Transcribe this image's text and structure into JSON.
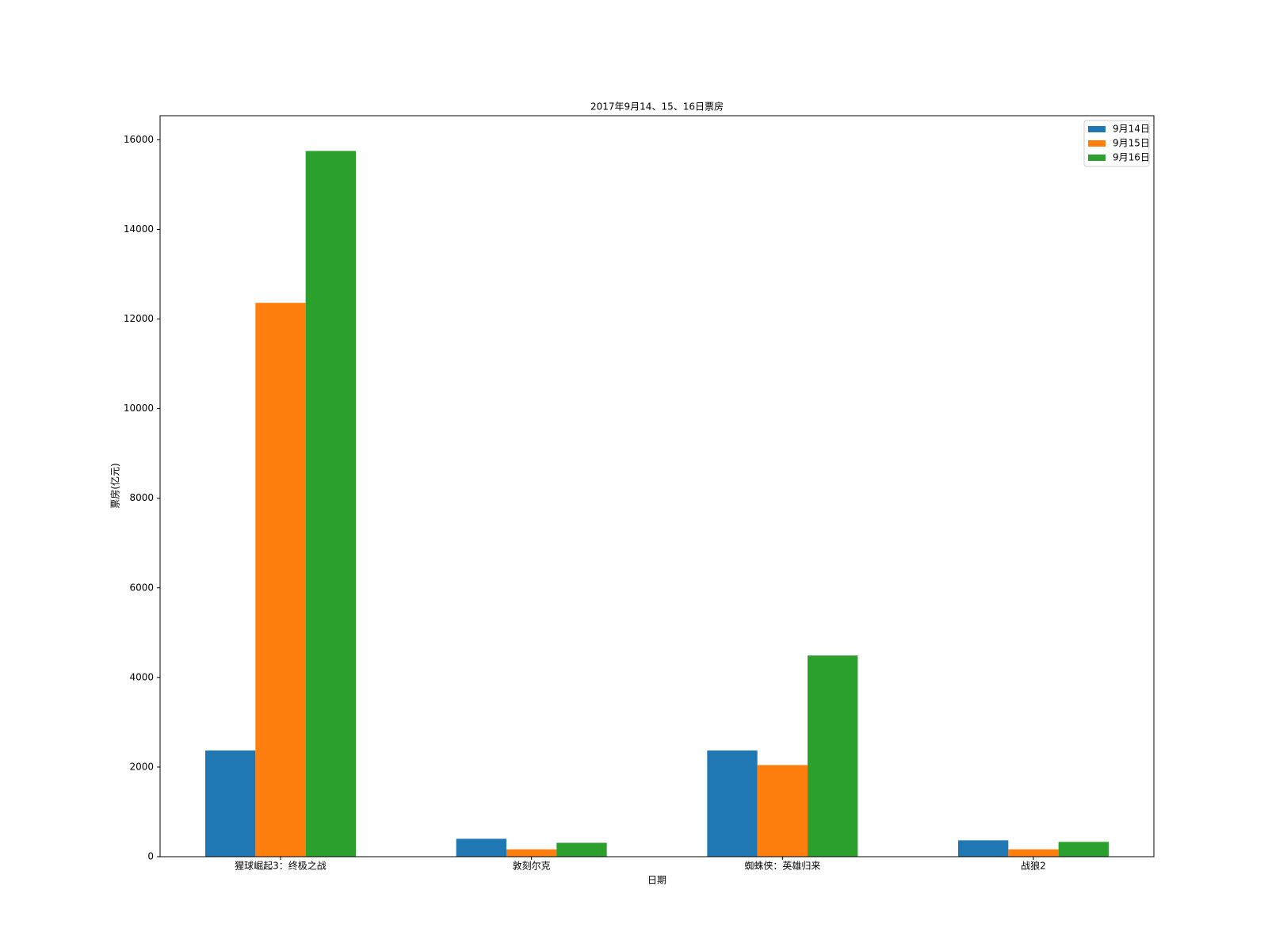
{
  "chart_data": {
    "type": "bar",
    "title": "2017年9月14、15、16日票房",
    "x_label": "日期",
    "y_label": "票房(亿元)",
    "categories": [
      "猩球崛起3：终极之战",
      "敦刻尔克",
      "蜘蛛侠：英雄归来",
      "战狼2"
    ],
    "series": [
      {
        "name": "9月14日",
        "color": "#1f77b4",
        "values": [
          2370,
          400,
          2370,
          365
        ]
      },
      {
        "name": "9月15日",
        "color": "#ff7f0e",
        "values": [
          12360,
          165,
          2045,
          165
        ]
      },
      {
        "name": "9月16日",
        "color": "#2ca02c",
        "values": [
          15750,
          310,
          4490,
          330
        ]
      }
    ],
    "ylim": [
      0,
      16537
    ],
    "yticks": [
      0,
      2000,
      4000,
      6000,
      8000,
      10000,
      12000,
      14000,
      16000
    ],
    "legend": "upper right"
  }
}
